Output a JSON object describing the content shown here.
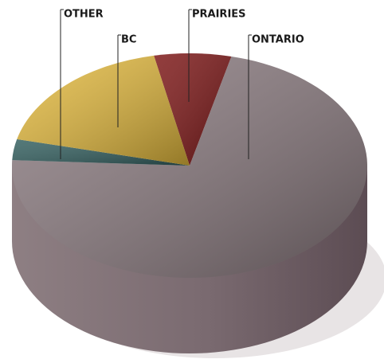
{
  "chart_data": {
    "type": "pie",
    "categories": [
      "PRAIRIES",
      "ONTARIO",
      "OTHER",
      "BC"
    ],
    "values": [
      7,
      72,
      3,
      18
    ],
    "colors": [
      "#7a1212",
      "#8a7a7f",
      "#2f5c5c",
      "#e3b93c"
    ]
  }
}
